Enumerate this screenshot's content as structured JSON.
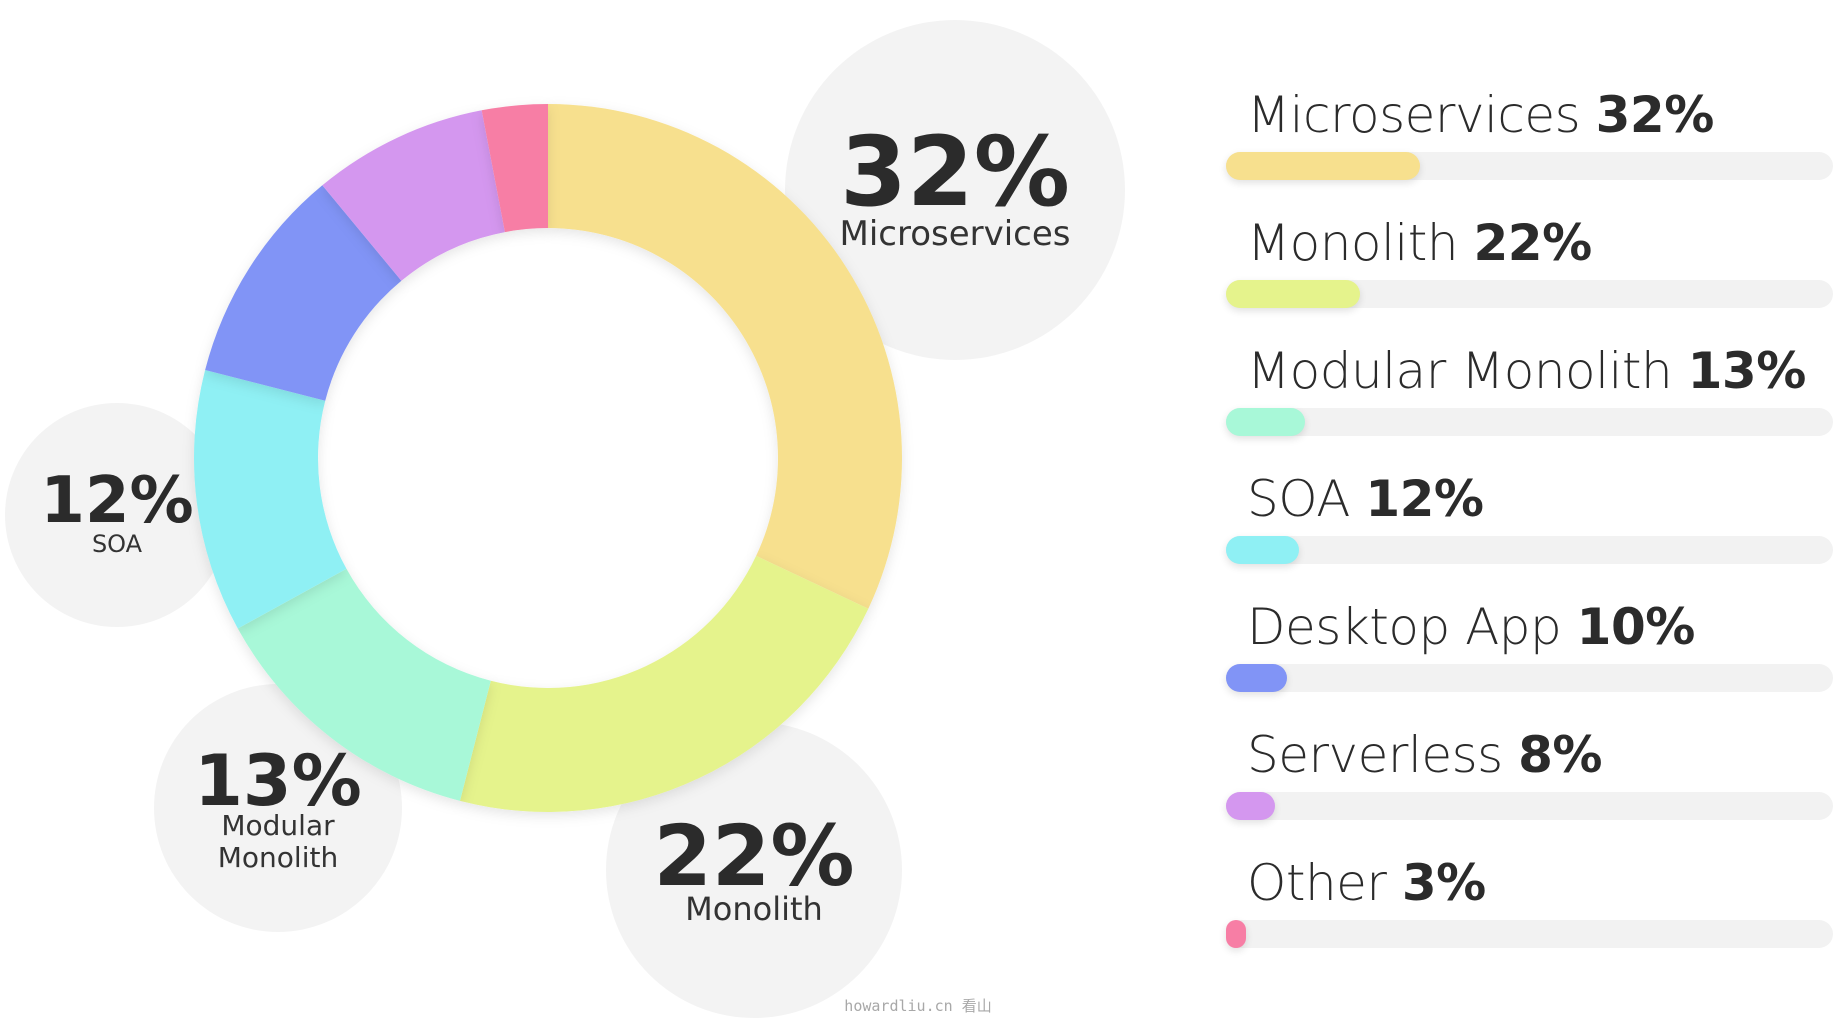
{
  "chart_data": {
    "type": "pie",
    "style": "donut",
    "categories": [
      "Microservices",
      "Monolith",
      "Modular Monolith",
      "SOA",
      "Desktop App",
      "Serverless",
      "Other"
    ],
    "values": [
      32,
      22,
      13,
      12,
      10,
      8,
      3
    ],
    "value_labels": [
      "32%",
      "22%",
      "13%",
      "12%",
      "10%",
      "8%",
      "3%"
    ],
    "colors": [
      "#f7e08e",
      "#e5f38c",
      "#a8f8d8",
      "#8ff0f4",
      "#8194f6",
      "#d497ef",
      "#f77ea5"
    ],
    "callouts": [
      {
        "value": "32%",
        "name": [
          "Microservices"
        ]
      },
      {
        "value": "22%",
        "name": [
          "Monolith"
        ]
      },
      {
        "value": "13%",
        "name": [
          "Modular",
          "Monolith"
        ]
      },
      {
        "value": "12%",
        "name": [
          "SOA"
        ]
      }
    ],
    "legend_placement": "right"
  },
  "footer": "howardliu.cn 看山"
}
